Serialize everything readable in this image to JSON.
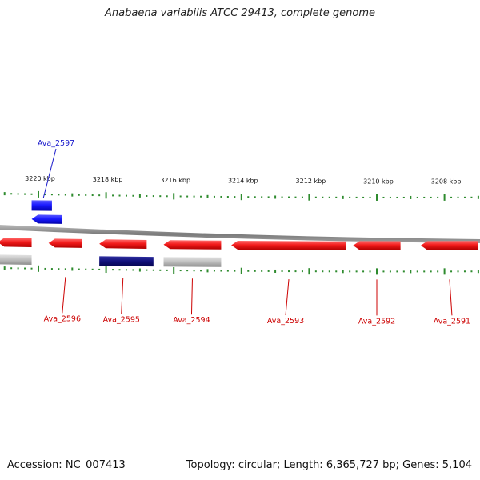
{
  "title": "Anabaena variabilis ATCC 29413, complete genome",
  "footer": {
    "accession_label": "Accession:",
    "accession": "NC_007413",
    "topology_label": "Topology:",
    "topology": "circular",
    "length_label": "Length:",
    "length": "6,365,727 bp",
    "genes_label": "Genes:",
    "genes": "5,104"
  },
  "colors": {
    "gene_forward": "#e01010",
    "gene_forward_light": "#ff5a5a",
    "gene_highlight": "#1a1aff",
    "gene_highlight_dark": "#0a0a80",
    "gene_grey": "#b8b8b8",
    "backbone": "#8c8c8c",
    "ticks": "#2e8b2e",
    "label_red": "#cc0000",
    "label_blue": "#1a1acc"
  },
  "chart_data": {
    "type": "genome-map",
    "axis_unit": "kbp",
    "tick_labels": [
      {
        "kbp": 3220,
        "label": "3220 kbp"
      },
      {
        "kbp": 3218,
        "label": "3218 kbp"
      },
      {
        "kbp": 3216,
        "label": "3216 kbp"
      },
      {
        "kbp": 3214,
        "label": "3214 kbp"
      },
      {
        "kbp": 3212,
        "label": "3212 kbp"
      },
      {
        "kbp": 3210,
        "label": "3210 kbp"
      },
      {
        "kbp": 3208,
        "label": "3208 kbp"
      }
    ],
    "genes": [
      {
        "name": "Ava_2597",
        "start_kbp": 3220.2,
        "end_kbp": 3219.6,
        "track": "outer",
        "color": "blue",
        "labeled": true
      },
      {
        "name": "",
        "start_kbp": 3220.2,
        "end_kbp": 3219.3,
        "track": "outer2",
        "color": "blue",
        "labeled": false
      },
      {
        "name": "Ava_2596",
        "start_kbp": 3219.7,
        "end_kbp": 3218.7,
        "track": "inner",
        "color": "red",
        "labeled": true
      },
      {
        "name": "Ava_2595",
        "start_kbp": 3218.2,
        "end_kbp": 3216.8,
        "track": "inner",
        "color": "red",
        "labeled": true
      },
      {
        "name": "",
        "start_kbp": 3218.2,
        "end_kbp": 3216.6,
        "track": "inner2",
        "color": "navy",
        "labeled": false
      },
      {
        "name": "Ava_2594",
        "start_kbp": 3216.3,
        "end_kbp": 3214.6,
        "track": "inner",
        "color": "red",
        "labeled": true
      },
      {
        "name": "",
        "start_kbp": 3216.3,
        "end_kbp": 3214.6,
        "track": "inner2",
        "color": "grey",
        "labeled": false
      },
      {
        "name": "Ava_2593",
        "start_kbp": 3214.3,
        "end_kbp": 3210.9,
        "track": "inner",
        "color": "red",
        "labeled": true
      },
      {
        "name": "Ava_2592",
        "start_kbp": 3210.7,
        "end_kbp": 3209.3,
        "track": "inner",
        "color": "red",
        "labeled": true
      },
      {
        "name": "Ava_2591",
        "start_kbp": 3208.7,
        "end_kbp": 3207.0,
        "track": "inner",
        "color": "red",
        "labeled": true
      },
      {
        "name": "",
        "start_kbp": 3221.2,
        "end_kbp": 3220.2,
        "track": "inner",
        "color": "red",
        "labeled": false
      },
      {
        "name": "",
        "start_kbp": 3221.2,
        "end_kbp": 3220.2,
        "track": "inner2",
        "color": "grey",
        "labeled": false
      }
    ]
  }
}
